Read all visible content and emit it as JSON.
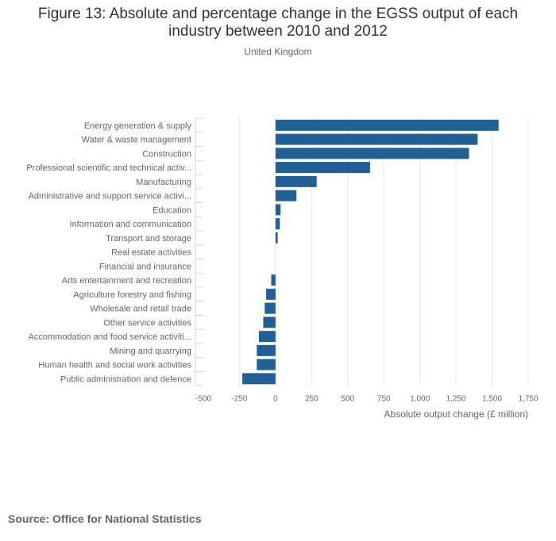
{
  "chart_data": {
    "type": "bar",
    "orientation": "horizontal",
    "title": "Figure 13: Absolute and percentage change in the EGSS output of each industry between 2010 and 2012",
    "subtitle": "United Kingdom",
    "xlabel": "Absolute output change (£ million)",
    "ylabel": "",
    "xlim": [
      -500,
      1750
    ],
    "xticks": [
      -500,
      -250,
      0,
      250,
      500,
      750,
      1000,
      1250,
      1500,
      1750
    ],
    "xtick_labels": [
      "-500",
      "-250",
      "0",
      "250",
      "500",
      "750",
      "1,000",
      "1,250",
      "1,500",
      "1,750"
    ],
    "grid": true,
    "bar_color": "#206095",
    "categories": [
      "Energy generation & supply",
      "Water & waste management",
      "Construction",
      "Professional scientific and technical activ...",
      "Manufacturing",
      "Administrative and support service activi...",
      "Education",
      "Information and communication",
      "Transport and storage",
      "Real estate activities",
      "Financial and insurance",
      "Arts entertainment and recreation",
      "Agriculture forestry and fishing",
      "Wholesale and retail trade",
      "Other service activities",
      "Accommodation and food service activiti...",
      "Mining and quarrying",
      "Human health and social work activities",
      "Public administration and defence"
    ],
    "values": [
      1545,
      1400,
      1340,
      655,
      285,
      145,
      35,
      30,
      15,
      0,
      0,
      -30,
      -65,
      -75,
      -85,
      -115,
      -130,
      -130,
      -230
    ]
  },
  "source": "Source: Office for National Statistics"
}
